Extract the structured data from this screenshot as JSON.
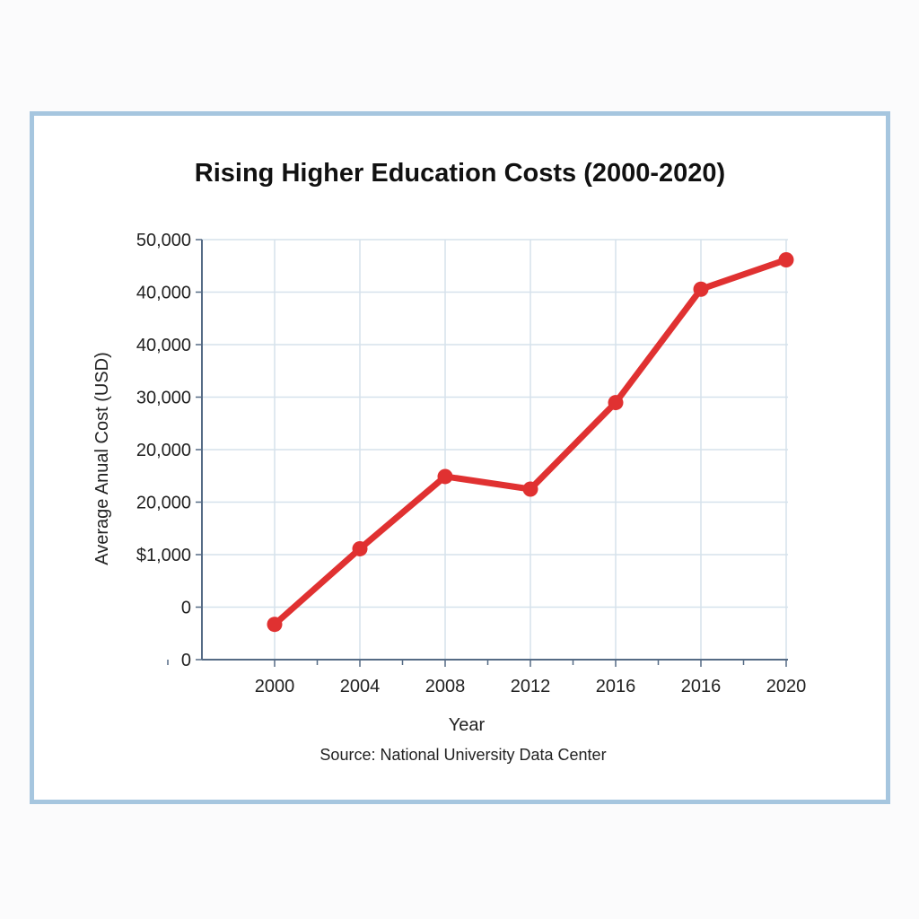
{
  "chart_data": {
    "type": "line",
    "title": "Rising Higher Education Costs (2000-2020)",
    "xlabel": "Year",
    "ylabel": "Average Anual Cost (USD)",
    "source": "Source: National University Data Center",
    "x_tick_labels": [
      "2000",
      "2004",
      "2008",
      "2012",
      "2016",
      "2016",
      "2020"
    ],
    "y_tick_labels": [
      "0",
      "0",
      "$1,000",
      "20,000",
      "20,000",
      "30,000",
      "40,000",
      "40,000",
      "50,000"
    ],
    "series": [
      {
        "values": [
          4200,
          13200,
          21800,
          20300,
          30600,
          44100,
          47600
        ]
      }
    ],
    "ylim": [
      0,
      50000
    ],
    "grid": true,
    "colors": {
      "line": "#e03131",
      "grid": "#d6e2ec",
      "axis": "#556b85",
      "frame": "#a6c6df"
    }
  }
}
